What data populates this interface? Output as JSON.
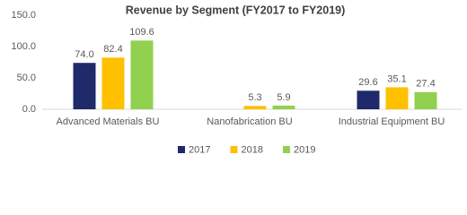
{
  "chart_data": {
    "type": "bar",
    "title": "Revenue by Segment (FY2017 to FY2019)",
    "categories": [
      "Advanced Materials BU",
      "Nanofabrication BU",
      "Industrial Equipment BU"
    ],
    "series": [
      {
        "name": "2017",
        "color": "#1f2a6b",
        "values": [
          74.0,
          null,
          29.6
        ],
        "value_labels": [
          "74.0",
          null,
          "29.6"
        ]
      },
      {
        "name": "2018",
        "color": "#ffc000",
        "values": [
          82.4,
          5.3,
          35.1
        ],
        "value_labels": [
          "82.4",
          "5.3",
          "35.1"
        ]
      },
      {
        "name": "2019",
        "color": "#92d050",
        "values": [
          109.6,
          5.9,
          27.4
        ],
        "value_labels": [
          "109.6",
          "5.9",
          "27.4"
        ]
      }
    ],
    "ylim": [
      0,
      150
    ],
    "yticks": [
      {
        "value": 0,
        "label": "0.0"
      },
      {
        "value": 50,
        "label": "50.0"
      },
      {
        "value": 100,
        "label": "100.0"
      },
      {
        "value": 150,
        "label": "150.0"
      }
    ],
    "grid": false,
    "legend": "bottom"
  }
}
